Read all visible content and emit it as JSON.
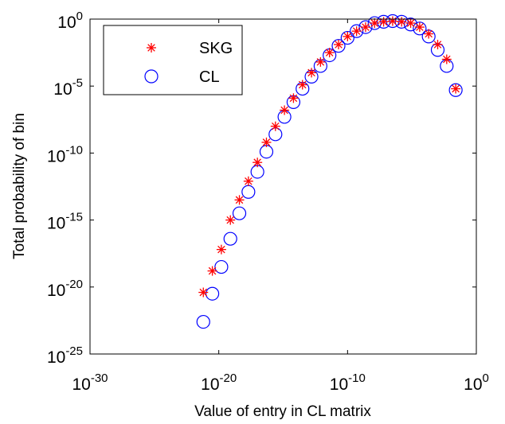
{
  "chart_data": {
    "type": "scatter",
    "xlabel": "Value of entry in CL matrix",
    "ylabel": "Total probability of bin",
    "x_scale": "log",
    "y_scale": "log",
    "xlim": [
      1e-30,
      1
    ],
    "ylim": [
      1e-25,
      1
    ],
    "x_ticks": [
      {
        "value": 1e-30,
        "base": "10",
        "exp": "-30"
      },
      {
        "value": 1e-20,
        "base": "10",
        "exp": "-20"
      },
      {
        "value": 1e-10,
        "base": "10",
        "exp": "-10"
      },
      {
        "value": 1,
        "base": "10",
        "exp": "0"
      }
    ],
    "y_ticks": [
      {
        "value": 1,
        "base": "10",
        "exp": "0"
      },
      {
        "value": 1e-05,
        "base": "10",
        "exp": "-5"
      },
      {
        "value": 1e-10,
        "base": "10",
        "exp": "-10"
      },
      {
        "value": 1e-15,
        "base": "10",
        "exp": "-15"
      },
      {
        "value": 1e-20,
        "base": "10",
        "exp": "-20"
      },
      {
        "value": 1e-25,
        "base": "10",
        "exp": "-25"
      }
    ],
    "grid": false,
    "legend_position": "top-left",
    "series": [
      {
        "name": "SKG",
        "marker": "asterisk",
        "color": "#ff0000",
        "log10_x": [
          -21.2,
          -20.5,
          -19.8,
          -19.1,
          -18.4,
          -17.7,
          -17.0,
          -16.3,
          -15.6,
          -14.9,
          -14.2,
          -13.5,
          -12.8,
          -12.1,
          -11.4,
          -10.7,
          -10.0,
          -9.3,
          -8.6,
          -7.9,
          -7.2,
          -6.5,
          -5.8,
          -5.1,
          -4.4,
          -3.7,
          -3.0,
          -2.3,
          -1.6
        ],
        "log10_y": [
          -20.4,
          -18.8,
          -17.2,
          -15.0,
          -13.5,
          -12.1,
          -10.7,
          -9.2,
          -8.0,
          -6.8,
          -5.9,
          -4.9,
          -4.0,
          -3.2,
          -2.5,
          -1.9,
          -1.3,
          -0.9,
          -0.6,
          -0.3,
          -0.2,
          -0.15,
          -0.2,
          -0.3,
          -0.6,
          -1.1,
          -1.9,
          -3.0,
          -5.2
        ]
      },
      {
        "name": "CL",
        "marker": "circle",
        "color": "#0000ff",
        "log10_x": [
          -21.2,
          -20.5,
          -19.8,
          -19.1,
          -18.4,
          -17.7,
          -17.0,
          -16.3,
          -15.6,
          -14.9,
          -14.2,
          -13.5,
          -12.8,
          -12.1,
          -11.4,
          -10.7,
          -10.0,
          -9.3,
          -8.6,
          -7.9,
          -7.2,
          -6.5,
          -5.8,
          -5.1,
          -4.4,
          -3.7,
          -3.0,
          -2.3,
          -1.6
        ],
        "log10_y": [
          -22.6,
          -20.5,
          -18.5,
          -16.4,
          -14.5,
          -12.9,
          -11.4,
          -9.9,
          -8.6,
          -7.3,
          -6.2,
          -5.2,
          -4.3,
          -3.5,
          -2.7,
          -2.0,
          -1.4,
          -0.9,
          -0.6,
          -0.3,
          -0.2,
          -0.15,
          -0.2,
          -0.4,
          -0.7,
          -1.3,
          -2.3,
          -3.5,
          -5.3
        ]
      }
    ]
  }
}
